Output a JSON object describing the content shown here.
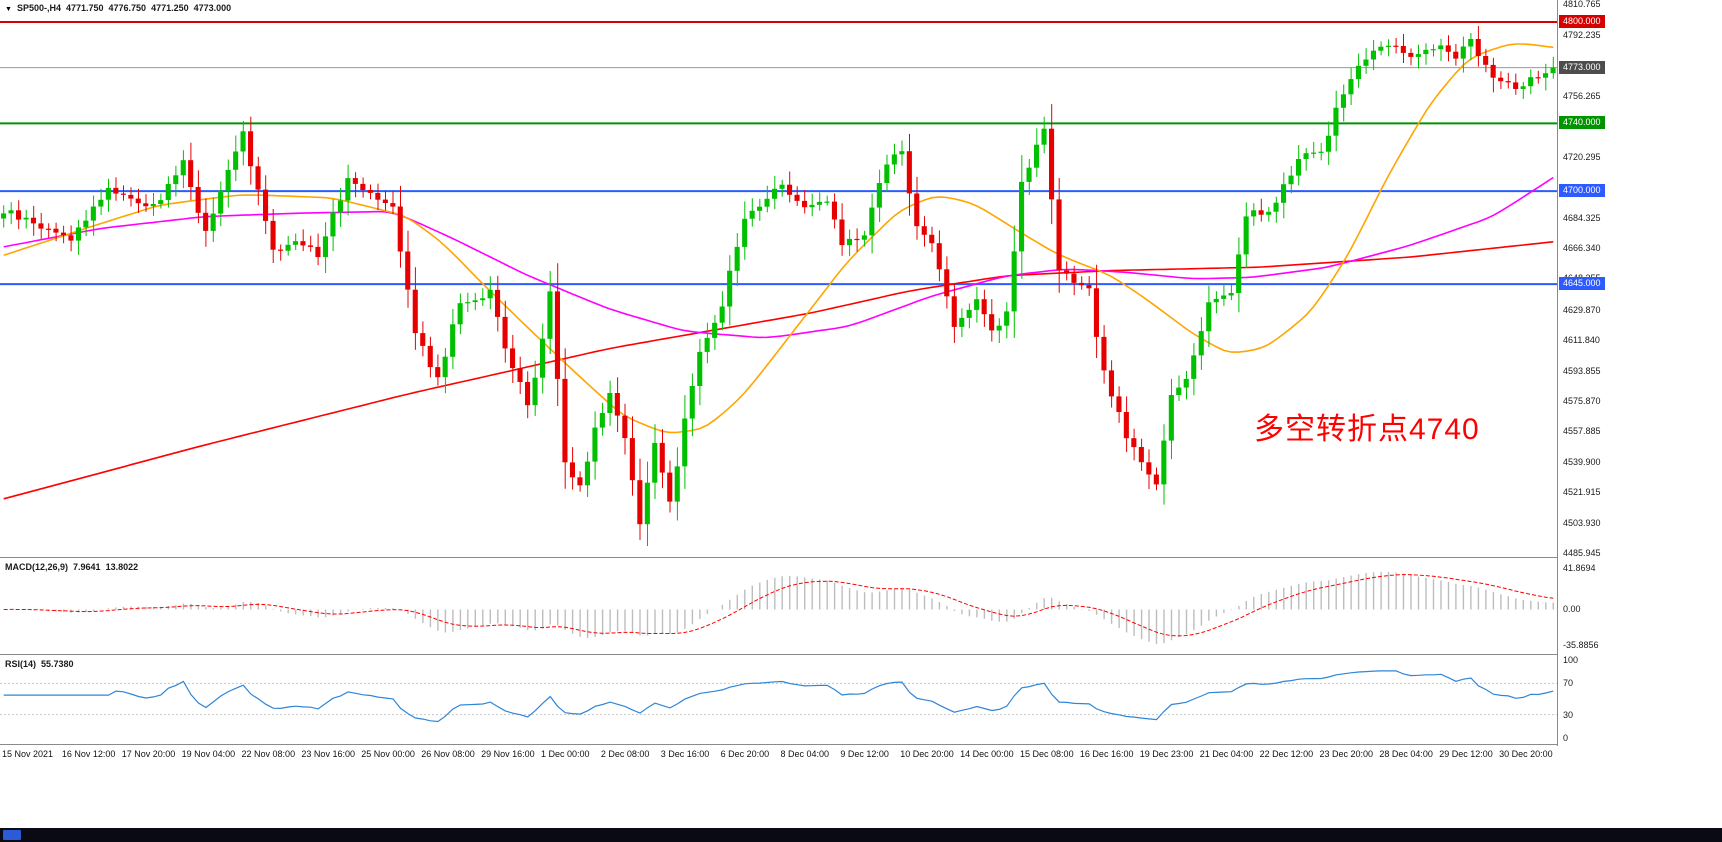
{
  "header": {
    "symbol": "SP500-,H4",
    "open": "4771.750",
    "high": "4776.750",
    "low": "4771.250",
    "close": "4773.000"
  },
  "macd_header": {
    "label": "MACD(12,26,9)",
    "value1": "7.9641",
    "value2": "13.8022"
  },
  "rsi_header": {
    "label": "RSI(14)",
    "value": "55.7380"
  },
  "annotation": {
    "text": "多空转折点4740",
    "color": "#ff0000"
  },
  "price_axis": {
    "ticks": [
      4810.765,
      4792.235,
      4756.265,
      4720.295,
      4684.325,
      4666.34,
      4648.355,
      4629.87,
      4611.84,
      4593.855,
      4575.87,
      4557.885,
      4539.9,
      4521.915,
      4503.93,
      4485.945
    ],
    "badges": [
      {
        "price": 4800.0,
        "label": "4800.000",
        "bg": "#d60000"
      },
      {
        "price": 4773.0,
        "label": "4773.000",
        "bg": "#4d4d4d"
      },
      {
        "price": 4740.0,
        "label": "4740.000",
        "bg": "#009500"
      },
      {
        "price": 4700.0,
        "label": "4700.000",
        "bg": "#2e5bff"
      },
      {
        "price": 4645.0,
        "label": "4645.000",
        "bg": "#2e5bff"
      }
    ]
  },
  "macd_axis": [
    {
      "value": 41.8694,
      "label": "41.8694"
    },
    {
      "value": 0,
      "label": "0.00"
    },
    {
      "value": -35.8856,
      "label": "-35.8856"
    }
  ],
  "rsi_axis": [
    {
      "value": 100,
      "label": "100"
    },
    {
      "value": 70,
      "label": "70"
    },
    {
      "value": 30,
      "label": "30"
    },
    {
      "value": 0,
      "label": "0"
    }
  ],
  "time_axis": [
    "15 Nov 2021",
    "16 Nov 12:00",
    "17 Nov 20:00",
    "19 Nov 04:00",
    "22 Nov 08:00",
    "23 Nov 16:00",
    "25 Nov 00:00",
    "26 Nov 08:00",
    "29 Nov 16:00",
    "1 Dec 00:00",
    "2 Dec 08:00",
    "3 Dec 16:00",
    "6 Dec 20:00",
    "8 Dec 04:00",
    "9 Dec 12:00",
    "10 Dec 20:00",
    "14 Dec 00:00",
    "15 Dec 08:00",
    "16 Dec 16:00",
    "19 Dec 23:00",
    "21 Dec 04:00",
    "22 Dec 12:00",
    "23 Dec 20:00",
    "28 Dec 04:00",
    "29 Dec 12:00",
    "30 Dec 20:00"
  ],
  "chart_data": {
    "type": "candlestick",
    "title": "SP500-,H4",
    "timeframe": "H4",
    "num_candles": 208,
    "price_range": [
      4483,
      4813
    ],
    "current_price": 4773.0,
    "up_color": "#00c000",
    "down_color": "#e60000",
    "close_anchors": [
      [
        0,
        4688
      ],
      [
        9,
        4672
      ],
      [
        14,
        4702
      ],
      [
        20,
        4690
      ],
      [
        24,
        4717
      ],
      [
        27,
        4675
      ],
      [
        32,
        4735
      ],
      [
        36,
        4663
      ],
      [
        39,
        4672
      ],
      [
        42,
        4663
      ],
      [
        46,
        4708
      ],
      [
        52,
        4692
      ],
      [
        55,
        4616
      ],
      [
        58,
        4589
      ],
      [
        61,
        4634
      ],
      [
        65,
        4640
      ],
      [
        67,
        4607
      ],
      [
        70,
        4574
      ],
      [
        71,
        4590
      ],
      [
        73,
        4640
      ],
      [
        75,
        4540
      ],
      [
        77,
        4525
      ],
      [
        79,
        4560
      ],
      [
        81,
        4580
      ],
      [
        83,
        4556
      ],
      [
        85,
        4503
      ],
      [
        87,
        4550
      ],
      [
        89,
        4514
      ],
      [
        91,
        4565
      ],
      [
        93,
        4604
      ],
      [
        96,
        4634
      ],
      [
        99,
        4684
      ],
      [
        102,
        4696
      ],
      [
        104,
        4705
      ],
      [
        107,
        4690
      ],
      [
        110,
        4693
      ],
      [
        112,
        4669
      ],
      [
        115,
        4675
      ],
      [
        118,
        4717
      ],
      [
        120,
        4723
      ],
      [
        122,
        4678
      ],
      [
        124,
        4669
      ],
      [
        127,
        4622
      ],
      [
        130,
        4634
      ],
      [
        132,
        4616
      ],
      [
        134,
        4628
      ],
      [
        136,
        4705
      ],
      [
        139,
        4735
      ],
      [
        141,
        4652
      ],
      [
        143,
        4646
      ],
      [
        145,
        4640
      ],
      [
        147,
        4592
      ],
      [
        150,
        4556
      ],
      [
        152,
        4538
      ],
      [
        154,
        4526
      ],
      [
        156,
        4580
      ],
      [
        158,
        4589
      ],
      [
        161,
        4634
      ],
      [
        164,
        4640
      ],
      [
        166,
        4687
      ],
      [
        169,
        4686
      ],
      [
        171,
        4702
      ],
      [
        173,
        4720
      ],
      [
        176,
        4723
      ],
      [
        179,
        4759
      ],
      [
        181,
        4774
      ],
      [
        184,
        4786
      ],
      [
        187,
        4783
      ],
      [
        189,
        4780
      ],
      [
        192,
        4786
      ],
      [
        194,
        4780
      ],
      [
        196,
        4789
      ],
      [
        199,
        4768
      ],
      [
        202,
        4762
      ],
      [
        204,
        4765
      ],
      [
        206,
        4771
      ],
      [
        207,
        4773
      ]
    ],
    "levels": [
      {
        "price": 4800,
        "color": "#d60000",
        "width": 2
      },
      {
        "price": 4740,
        "color": "#009500",
        "width": 2
      },
      {
        "price": 4700,
        "color": "#2e5bff",
        "width": 2
      },
      {
        "price": 4645,
        "color": "#2e5bff",
        "width": 2
      }
    ],
    "current_line_color": "#9a9a9a",
    "ma_red": {
      "color": "#ff0000",
      "points": [
        [
          0,
          4518
        ],
        [
          27,
          4550
        ],
        [
          54,
          4580
        ],
        [
          81,
          4607
        ],
        [
          108,
          4628
        ],
        [
          121,
          4641
        ],
        [
          134,
          4650
        ],
        [
          148,
          4653
        ],
        [
          168,
          4655
        ],
        [
          188,
          4661
        ],
        [
          207,
          4670
        ]
      ]
    },
    "ma_magenta": {
      "color": "#ff00ff",
      "points": [
        [
          0,
          4667
        ],
        [
          13,
          4678
        ],
        [
          27,
          4685
        ],
        [
          40,
          4687
        ],
        [
          52,
          4688
        ],
        [
          60,
          4672
        ],
        [
          70,
          4650
        ],
        [
          81,
          4630
        ],
        [
          91,
          4617
        ],
        [
          102,
          4613
        ],
        [
          113,
          4620
        ],
        [
          124,
          4638
        ],
        [
          134,
          4650
        ],
        [
          142,
          4654
        ],
        [
          150,
          4652
        ],
        [
          159,
          4648
        ],
        [
          167,
          4649
        ],
        [
          177,
          4655
        ],
        [
          188,
          4668
        ],
        [
          199,
          4685
        ],
        [
          207,
          4708
        ]
      ]
    },
    "ma_orange": {
      "color": "#ffa500",
      "points": [
        [
          0,
          4662
        ],
        [
          11,
          4678
        ],
        [
          21,
          4692
        ],
        [
          32,
          4698
        ],
        [
          44,
          4696
        ],
        [
          54,
          4685
        ],
        [
          59,
          4668
        ],
        [
          64,
          4645
        ],
        [
          71,
          4615
        ],
        [
          77,
          4590
        ],
        [
          83,
          4566
        ],
        [
          89,
          4556
        ],
        [
          94,
          4560
        ],
        [
          99,
          4580
        ],
        [
          106,
          4620
        ],
        [
          113,
          4660
        ],
        [
          120,
          4690
        ],
        [
          125,
          4698
        ],
        [
          130,
          4692
        ],
        [
          136,
          4675
        ],
        [
          141,
          4662
        ],
        [
          148,
          4650
        ],
        [
          153,
          4635
        ],
        [
          159,
          4615
        ],
        [
          164,
          4603
        ],
        [
          169,
          4608
        ],
        [
          175,
          4630
        ],
        [
          180,
          4665
        ],
        [
          185,
          4710
        ],
        [
          191,
          4755
        ],
        [
          196,
          4780
        ],
        [
          202,
          4788
        ],
        [
          207,
          4785
        ]
      ]
    },
    "macd": {
      "fast": 12,
      "slow": 26,
      "signal": 9,
      "hist_color": "#bdbdbd",
      "signal_color": "#ff0000",
      "value_range": [
        -40,
        45
      ]
    },
    "rsi": {
      "period": 14,
      "color": "#2e86d9",
      "levels": [
        70,
        30
      ],
      "value_range": [
        0,
        100
      ]
    }
  }
}
